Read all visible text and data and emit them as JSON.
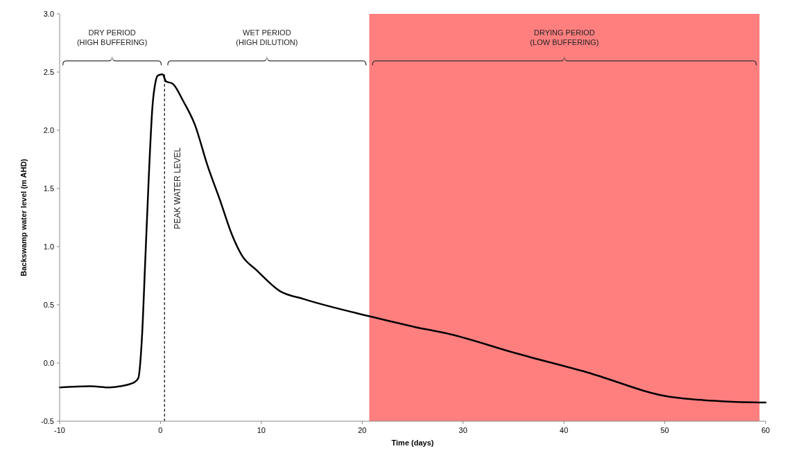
{
  "chart_data": {
    "type": "line",
    "xlabel": "Time (days)",
    "ylabel": "Backswamp water level (m AHD)",
    "xlim": [
      -10,
      60
    ],
    "ylim": [
      -0.5,
      3.0
    ],
    "xticks": [
      -10,
      0,
      10,
      20,
      30,
      40,
      50,
      60
    ],
    "yticks": [
      {
        "value": -0.5,
        "label": "-0.5"
      },
      {
        "value": 0,
        "label": "0.0"
      },
      {
        "value": 0.5,
        "label": "0.5"
      },
      {
        "value": 1,
        "label": "1.0"
      },
      {
        "value": 1.5,
        "label": "1.5"
      },
      {
        "value": 2,
        "label": "2.0"
      },
      {
        "value": 2.5,
        "label": "2.5"
      },
      {
        "value": 3,
        "label": "3.0"
      }
    ],
    "grid": false,
    "marker": "none",
    "line_style": "solid",
    "annotations": [
      "DRY PERIOD\n(HIGH BUFFERING)",
      "WET PERIOD\n(HIGH DILUTION)",
      "DRYING PERIOD\n(LOW BUFFERING)"
    ],
    "series": [
      {
        "color": "#000000",
        "x": [
          -10,
          -7,
          -5,
          -4,
          -3,
          -2.5,
          -2.2,
          -1.85,
          -1.5,
          -1.16,
          -0.8,
          -0.48,
          -0.27,
          0.2,
          0.55,
          1.2,
          2.26,
          3.4,
          4.65,
          5.9,
          7.1,
          8.1,
          9.5,
          11.8,
          14.2,
          20.8,
          25.2,
          28.6,
          35.4,
          42.3,
          50.5,
          52.5,
          56,
          60
        ],
        "values": [
          -0.21,
          -0.2,
          -0.21,
          -0.2,
          -0.18,
          -0.16,
          -0.13,
          0.2,
          0.9,
          1.6,
          2.2,
          2.42,
          2.47,
          2.48,
          2.42,
          2.4,
          2.25,
          2.05,
          1.7,
          1.4,
          1.1,
          0.92,
          0.8,
          0.62,
          0.55,
          0.4,
          0.31,
          0.25,
          0.08,
          -0.08,
          -0.29,
          -0.31,
          -0.33,
          -0.34
        ]
      }
    ],
    "ref_lines": [
      {
        "axis": "x",
        "value": 0.4,
        "label": "PEAK WATER LEVEL",
        "line_style": "dashed",
        "color": "#000000"
      }
    ],
    "bands": [
      {
        "axis": "x",
        "from": 20.7,
        "to": 59.4,
        "color": "#ff7f7f"
      }
    ]
  }
}
